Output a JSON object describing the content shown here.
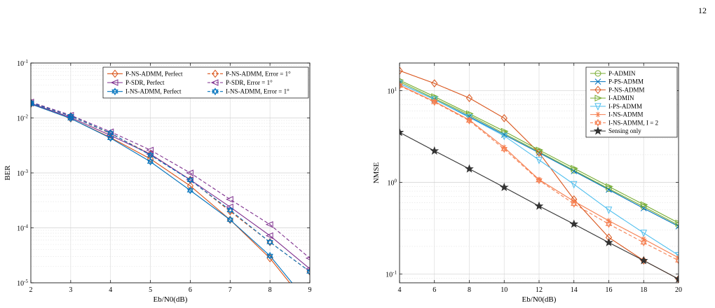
{
  "page_number": "12",
  "chart_data": [
    {
      "type": "line",
      "xlabel": "Eb/N0(dB)",
      "ylabel": "BER",
      "yscale": "log",
      "xlim": [
        2,
        9
      ],
      "ylim": [
        1e-05,
        0.1
      ],
      "x_ticks": [
        "2",
        "3",
        "4",
        "5",
        "6",
        "7",
        "8",
        "9"
      ],
      "y_ticks": [
        "10-5",
        "10-4",
        "10-3",
        "10-2",
        "10-1"
      ],
      "grid": true,
      "legend_placement": "top-right",
      "legend_columns": 2,
      "series": [
        {
          "name": "P-NS-ADMM, Perfect",
          "color": "#d95319",
          "marker": "diamond",
          "dash": "solid",
          "x": [
            2,
            3,
            4,
            5,
            6,
            7,
            8,
            9
          ],
          "y": [
            0.018,
            0.0098,
            0.0044,
            0.0018,
            0.00058,
            0.00014,
            2.8e-05,
            3.5e-06
          ]
        },
        {
          "name": "P-NS-ADMM, Error = 1°",
          "color": "#d95319",
          "marker": "diamond",
          "dash": "dashed",
          "x": [
            2,
            3,
            4,
            5,
            6,
            7,
            8,
            9
          ],
          "y": [
            0.019,
            0.0108,
            0.0052,
            0.0022,
            0.00075,
            0.0002,
            5.5e-05,
            1.6e-05
          ]
        },
        {
          "name": "P-SDR, Perfect",
          "color": "#7e2f8e",
          "marker": "triangle-left",
          "dash": "solid",
          "x": [
            2,
            3,
            4,
            5,
            6,
            7,
            8,
            9
          ],
          "y": [
            0.0185,
            0.0102,
            0.0048,
            0.0022,
            0.00075,
            0.00024,
            7.2e-05,
            1.8e-05
          ]
        },
        {
          "name": "P-SDR, Error = 1°",
          "color": "#7e2f8e",
          "marker": "triangle-left",
          "dash": "dashed",
          "x": [
            2,
            3,
            4,
            5,
            6,
            7,
            8,
            9
          ],
          "y": [
            0.0195,
            0.0112,
            0.0056,
            0.0026,
            0.001,
            0.00033,
            0.000115,
            2.8e-05
          ]
        },
        {
          "name": "I-NS-ADMM, Perfect",
          "color": "#0072bd",
          "marker": "hexagram",
          "dash": "solid",
          "x": [
            2,
            3,
            4,
            5,
            6,
            7,
            8,
            9
          ],
          "y": [
            0.018,
            0.0098,
            0.0043,
            0.0016,
            0.00048,
            0.00014,
            3.1e-05,
            4e-06
          ]
        },
        {
          "name": "I-NS-ADMM, Error = 1°",
          "color": "#0072bd",
          "marker": "hexagram",
          "dash": "dashed",
          "x": [
            2,
            3,
            4,
            5,
            6,
            7,
            8,
            9
          ],
          "y": [
            0.019,
            0.0108,
            0.0053,
            0.0021,
            0.00074,
            0.00021,
            5.5e-05,
            1.6e-05
          ]
        }
      ]
    },
    {
      "type": "line",
      "xlabel": "Eb/N0(dB)",
      "ylabel": "NMSE",
      "yscale": "log",
      "xlim": [
        4,
        20
      ],
      "ylim": [
        0.08,
        20
      ],
      "x_ticks": [
        "4",
        "6",
        "8",
        "10",
        "12",
        "14",
        "16",
        "18",
        "20"
      ],
      "y_ticks": [
        "10-1",
        "100",
        "101"
      ],
      "grid": true,
      "legend_placement": "top-right",
      "legend_columns": 1,
      "series": [
        {
          "name": "P-ADMIN",
          "color": "#77ac30",
          "marker": "circle",
          "dash": "solid",
          "x": [
            4,
            6,
            8,
            10,
            12,
            14,
            16,
            18,
            20
          ],
          "y": [
            12.5,
            8.2,
            5.4,
            3.4,
            2.15,
            1.35,
            0.85,
            0.54,
            0.34
          ]
        },
        {
          "name": "P-PS-ADMM",
          "color": "#0072bd",
          "marker": "x",
          "dash": "solid",
          "x": [
            4,
            6,
            8,
            10,
            12,
            14,
            16,
            18,
            20
          ],
          "y": [
            12.0,
            8.0,
            5.2,
            3.3,
            2.1,
            1.32,
            0.83,
            0.52,
            0.33
          ]
        },
        {
          "name": "P-NS-ADMM",
          "color": "#d95319",
          "marker": "diamond",
          "dash": "solid",
          "x": [
            4,
            6,
            8,
            10,
            12,
            14,
            16,
            18,
            20
          ],
          "y": [
            16.5,
            12.0,
            8.3,
            5.0,
            2.1,
            0.65,
            0.25,
            0.14,
            0.088
          ]
        },
        {
          "name": "I-ADMIN",
          "color": "#77ac30",
          "marker": "triangle-right",
          "dash": "solid",
          "x": [
            4,
            6,
            8,
            10,
            12,
            14,
            16,
            18,
            20
          ],
          "y": [
            13.0,
            8.6,
            5.6,
            3.6,
            2.25,
            1.42,
            0.9,
            0.57,
            0.36
          ]
        },
        {
          "name": "I-PS-ADMM",
          "color": "#4dbeee",
          "marker": "triangle-down",
          "dash": "solid",
          "x": [
            4,
            6,
            8,
            10,
            12,
            14,
            16,
            18,
            20
          ],
          "y": [
            12.0,
            8.0,
            5.1,
            3.2,
            1.75,
            0.95,
            0.5,
            0.28,
            0.16
          ]
        },
        {
          "name": "I-NS-ADMM",
          "color": "#f57f50",
          "marker": "asterisk",
          "dash": "solid",
          "x": [
            4,
            6,
            8,
            10,
            12,
            14,
            16,
            18,
            20
          ],
          "y": [
            11.5,
            7.6,
            4.8,
            2.4,
            1.07,
            0.62,
            0.38,
            0.24,
            0.15
          ]
        },
        {
          "name": "I-NS-ADMM, I = 2",
          "color": "#f57f50",
          "marker": "hexagram",
          "dash": "dashed",
          "x": [
            4,
            6,
            8,
            10,
            12,
            14,
            16,
            18,
            20
          ],
          "y": [
            11.3,
            7.5,
            4.7,
            2.3,
            1.05,
            0.58,
            0.35,
            0.22,
            0.14
          ]
        },
        {
          "name": "Sensing only",
          "color": "#333333",
          "marker": "pentagram",
          "dash": "solid",
          "x": [
            4,
            6,
            8,
            10,
            12,
            14,
            16,
            18,
            20
          ],
          "y": [
            3.5,
            2.2,
            1.4,
            0.88,
            0.55,
            0.35,
            0.22,
            0.14,
            0.088
          ]
        }
      ]
    }
  ]
}
